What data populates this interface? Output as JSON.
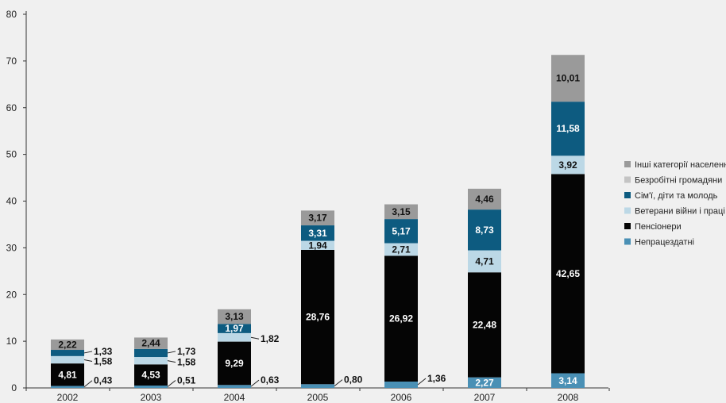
{
  "chart_data": {
    "type": "bar",
    "stacked": true,
    "categories": [
      "2002",
      "2003",
      "2004",
      "2005",
      "2006",
      "2007",
      "2008"
    ],
    "ylim": [
      0,
      80
    ],
    "yticks": [
      0,
      10,
      20,
      30,
      40,
      50,
      60,
      70,
      80
    ],
    "grid": false,
    "legend_position": "right",
    "series": [
      {
        "name": "Непрацездатні",
        "color": "#4a90b5",
        "label_color": "#ffffff",
        "values": [
          0.43,
          0.51,
          0.63,
          0.8,
          1.36,
          2.27,
          3.14
        ],
        "labels": [
          "0,43",
          "0,51",
          "0,63",
          "0,80",
          "1,36",
          "2,27",
          "3,14"
        ]
      },
      {
        "name": "Пенсіонери",
        "color": "#050505",
        "label_color": "#ffffff",
        "values": [
          4.81,
          4.53,
          9.29,
          28.76,
          26.92,
          22.48,
          42.65
        ],
        "labels": [
          "4,81",
          "4,53",
          "9,29",
          "28,76",
          "26,92",
          "22,48",
          "42,65"
        ]
      },
      {
        "name": "Ветерани війни і праці",
        "color": "#bcd8e6",
        "label_color": "#111111",
        "values": [
          1.58,
          1.58,
          1.82,
          1.94,
          2.71,
          4.71,
          3.92
        ],
        "labels": [
          "1,58",
          "1,58",
          "1,82",
          "1,94",
          "2,71",
          "4,71",
          "3,92"
        ]
      },
      {
        "name": "Сім'ї, діти та молодь",
        "color": "#0d5b80",
        "label_color": "#ffffff",
        "values": [
          1.33,
          1.73,
          1.97,
          3.31,
          5.17,
          8.73,
          11.58
        ],
        "labels": [
          "1,33",
          "1,73",
          "1,97",
          "3,31",
          "5,17",
          "8,73",
          "11,58"
        ]
      },
      {
        "name": "Безробітні громадяни",
        "color": "#c4c4c4",
        "label_color": "#111111",
        "values": [
          0,
          0,
          0,
          0,
          0,
          0,
          0
        ],
        "labels": [
          "",
          "",
          "",
          "",
          "",
          "",
          ""
        ]
      },
      {
        "name": "Інші категорії населення",
        "color": "#9a9a9a",
        "label_color": "#111111",
        "values": [
          2.22,
          2.44,
          3.13,
          3.17,
          3.15,
          4.46,
          10.01
        ],
        "labels": [
          "2,22",
          "2,44",
          "3,13",
          "3,17",
          "3,15",
          "4,46",
          "10,01"
        ]
      }
    ],
    "legend_order": [
      5,
      4,
      3,
      2,
      1,
      0
    ]
  }
}
